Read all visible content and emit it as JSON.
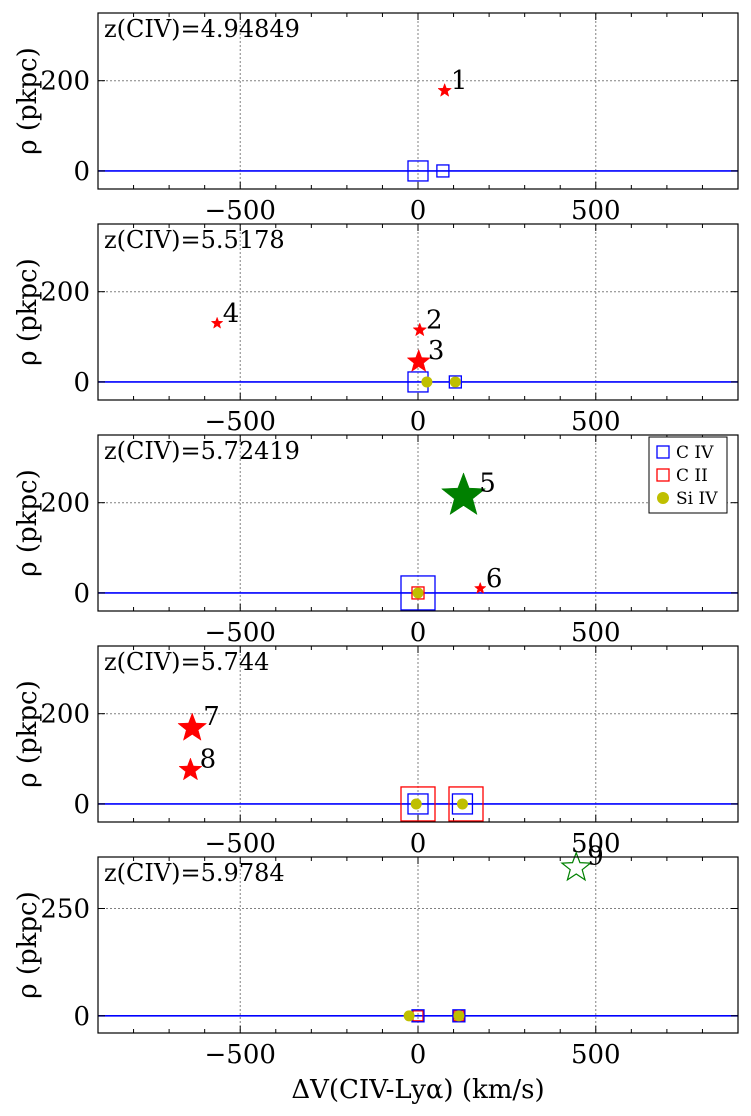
{
  "chart_data": {
    "type": "scatter",
    "xlabel": "ΔV(CIV-Lyα) (km/s)",
    "ylabel": "ρ (pkpc)",
    "xlim": [
      -900,
      900
    ],
    "xticks": [
      -500,
      0,
      500
    ],
    "xtick_labels": [
      "−500",
      "0",
      "500"
    ],
    "grid": true,
    "legend": {
      "placement": "panel-3 top-right",
      "entries": [
        {
          "label": "C IV",
          "marker": "open-square",
          "color": "#0000ff"
        },
        {
          "label": "C II",
          "marker": "open-square",
          "color": "#ff0000"
        },
        {
          "label": "Si IV",
          "marker": "filled-circle",
          "color": "#bfbf00"
        }
      ]
    },
    "colors": {
      "civ": "#0000ff",
      "cii": "#ff0000",
      "siv": "#bfbf00",
      "star_red": "#ff0000",
      "star_green": "#008000",
      "baseline": "#0000ff",
      "grid": "#808080"
    },
    "panels": [
      {
        "z_label": "z(CIV)=4.94849",
        "ylim": [
          -40,
          350
        ],
        "yticks": [
          0,
          200
        ],
        "ytick_labels": [
          "0",
          "200"
        ],
        "grid_y": [
          0,
          200
        ],
        "squares_civ": [
          {
            "x": 0,
            "size": "large"
          },
          {
            "x": 70,
            "size": "small"
          }
        ],
        "squares_cii": [],
        "circles_siv": [],
        "stars": [
          {
            "x": 75,
            "y": 178,
            "size": "small",
            "color": "red",
            "filled": true,
            "label": "1"
          }
        ]
      },
      {
        "z_label": "z(CIV)=5.5178",
        "ylim": [
          -40,
          350
        ],
        "yticks": [
          0,
          200
        ],
        "ytick_labels": [
          "0",
          "200"
        ],
        "grid_y": [
          0,
          200
        ],
        "squares_civ": [
          {
            "x": 0,
            "size": "large"
          },
          {
            "x": 105,
            "size": "small"
          }
        ],
        "squares_cii": [],
        "circles_siv": [
          {
            "x": 25
          },
          {
            "x": 105
          }
        ],
        "stars": [
          {
            "x": 5,
            "y": 115,
            "size": "small",
            "color": "red",
            "filled": true,
            "label": "2"
          },
          {
            "x": 2,
            "y": 45,
            "size": "medium",
            "color": "red",
            "filled": true,
            "label": "3"
          },
          {
            "x": -565,
            "y": 130,
            "size": "tiny",
            "color": "red",
            "filled": true,
            "label": "4"
          }
        ]
      },
      {
        "z_label": "z(CIV)=5.72419",
        "ylim": [
          -40,
          350
        ],
        "yticks": [
          0,
          200
        ],
        "ytick_labels": [
          "0",
          "200"
        ],
        "grid_y": [
          0,
          200
        ],
        "squares_civ": [
          {
            "x": 0,
            "size": "xlarge"
          }
        ],
        "squares_cii": [
          {
            "x": 0,
            "size": "small"
          }
        ],
        "circles_siv": [
          {
            "x": 0
          }
        ],
        "stars": [
          {
            "x": 128,
            "y": 215,
            "size": "huge",
            "color": "green",
            "filled": true,
            "label": "5"
          },
          {
            "x": 175,
            "y": 10,
            "size": "tiny",
            "color": "red",
            "filled": true,
            "label": "6"
          }
        ]
      },
      {
        "z_label": "z(CIV)=5.744",
        "ylim": [
          -40,
          350
        ],
        "yticks": [
          0,
          200
        ],
        "ytick_labels": [
          "0",
          "200"
        ],
        "grid_y": [
          0,
          200
        ],
        "squares_civ": [
          {
            "x": 0,
            "size": "medium"
          },
          {
            "x": 125,
            "size": "medium"
          }
        ],
        "squares_cii": [
          {
            "x": 0,
            "size": "xlarge"
          },
          {
            "x": 135,
            "size": "xlarge"
          }
        ],
        "circles_siv": [
          {
            "x": -5
          },
          {
            "x": 125
          }
        ],
        "stars": [
          {
            "x": -635,
            "y": 168,
            "size": "large",
            "color": "red",
            "filled": true,
            "label": "7"
          },
          {
            "x": -640,
            "y": 75,
            "size": "medium",
            "color": "red",
            "filled": true,
            "label": "8"
          }
        ]
      },
      {
        "z_label": "z(CIV)=5.9784",
        "ylim": [
          -40,
          370
        ],
        "yticks": [
          0,
          250
        ],
        "ytick_labels": [
          "0",
          "250"
        ],
        "grid_y": [
          0,
          250
        ],
        "squares_civ": [
          {
            "x": 0,
            "size": "small"
          },
          {
            "x": 115,
            "size": "small"
          }
        ],
        "squares_cii": [
          {
            "x": 0,
            "size": "tiny"
          },
          {
            "x": 115,
            "size": "tiny"
          }
        ],
        "circles_siv": [
          {
            "x": -25
          },
          {
            "x": 115
          }
        ],
        "stars": [
          {
            "x": 445,
            "y": 345,
            "size": "large",
            "color": "green",
            "filled": false,
            "label": "9"
          }
        ]
      }
    ]
  }
}
